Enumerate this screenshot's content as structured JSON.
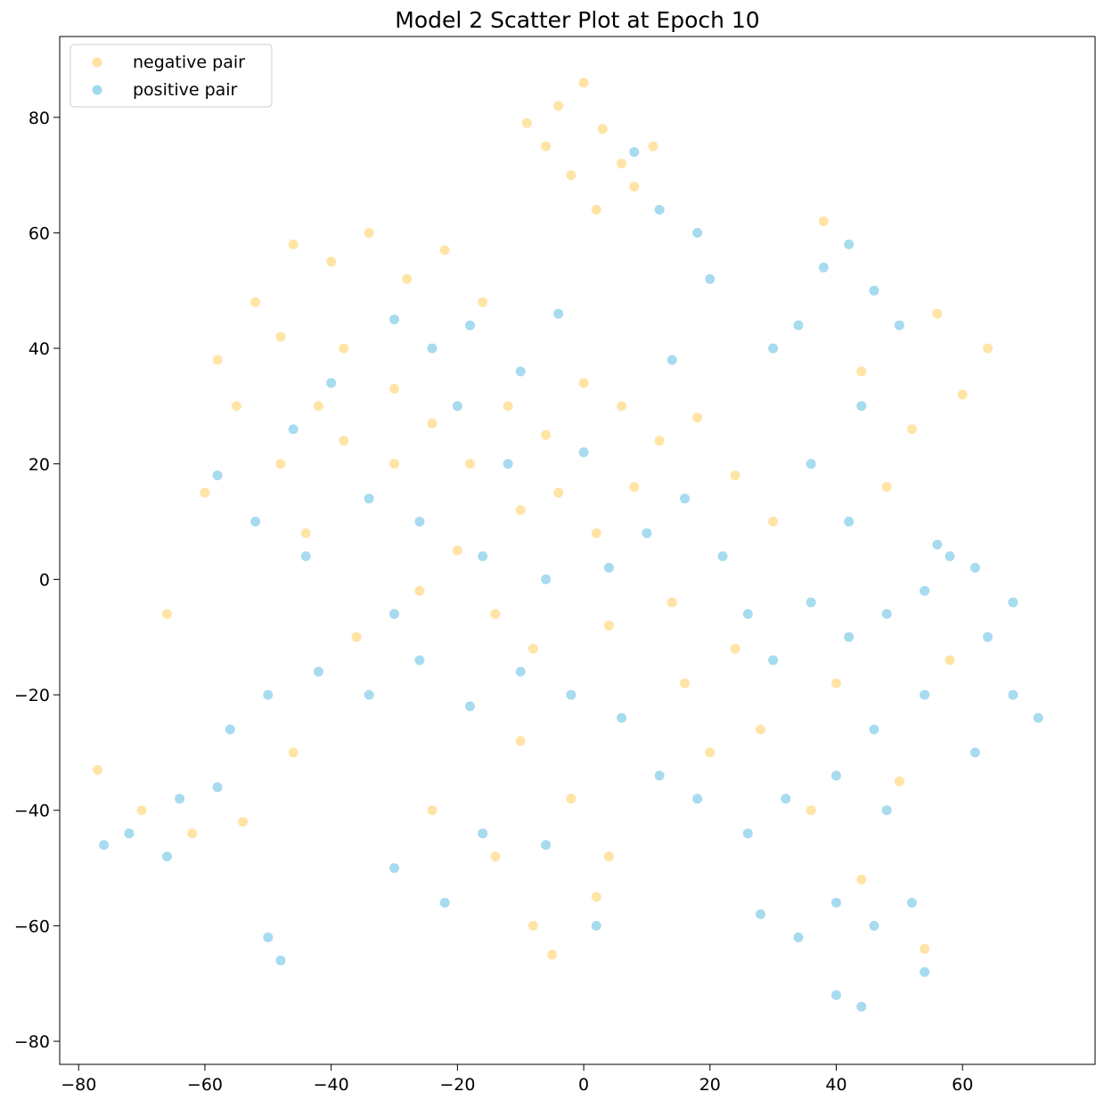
{
  "chart_data": {
    "type": "scatter",
    "title": "Model 2 Scatter Plot at Epoch 10",
    "xlabel": "",
    "ylabel": "",
    "xlim": [
      -83,
      81
    ],
    "ylim": [
      -84,
      94
    ],
    "xticks": [
      -80,
      -60,
      -40,
      -20,
      0,
      20,
      40,
      60
    ],
    "yticks": [
      -80,
      -60,
      -40,
      -20,
      0,
      20,
      40,
      60,
      80
    ],
    "xtick_labels": [
      "−80",
      "−60",
      "−40",
      "−20",
      "0",
      "20",
      "40",
      "60"
    ],
    "ytick_labels": [
      "−80",
      "−60",
      "−40",
      "−20",
      "0",
      "20",
      "40",
      "60",
      "80"
    ],
    "grid": false,
    "legend": "top-left",
    "series": [
      {
        "name": "negative pair",
        "color": "#FFDB88",
        "alpha": 0.75,
        "points": [
          [
            -4,
            82
          ],
          [
            0,
            86
          ],
          [
            3,
            78
          ],
          [
            -6,
            75
          ],
          [
            6,
            72
          ],
          [
            -2,
            70
          ],
          [
            8,
            68
          ],
          [
            -9,
            79
          ],
          [
            2,
            64
          ],
          [
            11,
            75
          ],
          [
            -46,
            58
          ],
          [
            -40,
            55
          ],
          [
            -34,
            60
          ],
          [
            -28,
            52
          ],
          [
            -22,
            57
          ],
          [
            -16,
            48
          ],
          [
            -52,
            48
          ],
          [
            -58,
            38
          ],
          [
            -55,
            30
          ],
          [
            -48,
            42
          ],
          [
            -38,
            40
          ],
          [
            -30,
            33
          ],
          [
            -24,
            27
          ],
          [
            -18,
            20
          ],
          [
            -12,
            30
          ],
          [
            -6,
            25
          ],
          [
            0,
            34
          ],
          [
            6,
            30
          ],
          [
            12,
            24
          ],
          [
            18,
            28
          ],
          [
            24,
            18
          ],
          [
            -10,
            12
          ],
          [
            -4,
            15
          ],
          [
            2,
            8
          ],
          [
            8,
            16
          ],
          [
            -20,
            5
          ],
          [
            -26,
            -2
          ],
          [
            -14,
            -6
          ],
          [
            -8,
            -12
          ],
          [
            4,
            -8
          ],
          [
            14,
            -4
          ],
          [
            -36,
            -10
          ],
          [
            -44,
            8
          ],
          [
            -60,
            15
          ],
          [
            -66,
            -6
          ],
          [
            -77,
            -33
          ],
          [
            -70,
            -40
          ],
          [
            -62,
            -44
          ],
          [
            -54,
            -42
          ],
          [
            -46,
            -30
          ],
          [
            -24,
            -40
          ],
          [
            -14,
            -48
          ],
          [
            -8,
            -60
          ],
          [
            -5,
            -65
          ],
          [
            2,
            -55
          ],
          [
            4,
            -48
          ],
          [
            -2,
            -38
          ],
          [
            -10,
            -28
          ],
          [
            20,
            -30
          ],
          [
            28,
            -26
          ],
          [
            36,
            -40
          ],
          [
            44,
            -52
          ],
          [
            50,
            -35
          ],
          [
            54,
            -64
          ],
          [
            60,
            32
          ],
          [
            64,
            40
          ],
          [
            56,
            46
          ],
          [
            52,
            26
          ],
          [
            44,
            36
          ],
          [
            38,
            62
          ],
          [
            30,
            10
          ],
          [
            24,
            -12
          ],
          [
            16,
            -18
          ],
          [
            40,
            -18
          ],
          [
            48,
            16
          ],
          [
            58,
            -14
          ],
          [
            -30,
            20
          ],
          [
            -38,
            24
          ],
          [
            -42,
            30
          ],
          [
            -48,
            20
          ]
        ]
      },
      {
        "name": "positive pair",
        "color": "#89CFEA",
        "alpha": 0.75,
        "points": [
          [
            8,
            74
          ],
          [
            12,
            64
          ],
          [
            18,
            60
          ],
          [
            20,
            52
          ],
          [
            -30,
            45
          ],
          [
            -24,
            40
          ],
          [
            -18,
            44
          ],
          [
            -10,
            36
          ],
          [
            -40,
            34
          ],
          [
            -46,
            26
          ],
          [
            -52,
            10
          ],
          [
            -58,
            18
          ],
          [
            -34,
            14
          ],
          [
            -26,
            10
          ],
          [
            -16,
            4
          ],
          [
            -6,
            0
          ],
          [
            4,
            2
          ],
          [
            10,
            8
          ],
          [
            16,
            14
          ],
          [
            22,
            4
          ],
          [
            26,
            -6
          ],
          [
            30,
            -14
          ],
          [
            36,
            -4
          ],
          [
            42,
            -10
          ],
          [
            48,
            -6
          ],
          [
            54,
            -2
          ],
          [
            58,
            4
          ],
          [
            64,
            -10
          ],
          [
            68,
            -20
          ],
          [
            72,
            -24
          ],
          [
            62,
            -30
          ],
          [
            54,
            -20
          ],
          [
            46,
            -26
          ],
          [
            40,
            -34
          ],
          [
            32,
            -38
          ],
          [
            26,
            -44
          ],
          [
            18,
            -38
          ],
          [
            12,
            -34
          ],
          [
            6,
            -24
          ],
          [
            -2,
            -20
          ],
          [
            -10,
            -16
          ],
          [
            -18,
            -22
          ],
          [
            -26,
            -14
          ],
          [
            -34,
            -20
          ],
          [
            -42,
            -16
          ],
          [
            -50,
            -20
          ],
          [
            -56,
            -26
          ],
          [
            -64,
            -38
          ],
          [
            -72,
            -44
          ],
          [
            -76,
            -46
          ],
          [
            -66,
            -48
          ],
          [
            -58,
            -36
          ],
          [
            -50,
            -62
          ],
          [
            -48,
            -66
          ],
          [
            -30,
            -50
          ],
          [
            -22,
            -56
          ],
          [
            -16,
            -44
          ],
          [
            -6,
            -46
          ],
          [
            2,
            -60
          ],
          [
            28,
            -58
          ],
          [
            34,
            -62
          ],
          [
            40,
            -56
          ],
          [
            46,
            -60
          ],
          [
            52,
            -56
          ],
          [
            54,
            -68
          ],
          [
            44,
            -74
          ],
          [
            40,
            -72
          ],
          [
            34,
            44
          ],
          [
            38,
            54
          ],
          [
            42,
            58
          ],
          [
            46,
            50
          ],
          [
            50,
            44
          ],
          [
            44,
            30
          ],
          [
            30,
            40
          ],
          [
            36,
            20
          ],
          [
            42,
            10
          ],
          [
            56,
            6
          ],
          [
            62,
            2
          ],
          [
            68,
            -4
          ],
          [
            48,
            -40
          ],
          [
            -12,
            20
          ],
          [
            0,
            22
          ],
          [
            -20,
            30
          ],
          [
            -44,
            4
          ],
          [
            -30,
            -6
          ],
          [
            14,
            38
          ],
          [
            -4,
            46
          ]
        ]
      }
    ]
  }
}
